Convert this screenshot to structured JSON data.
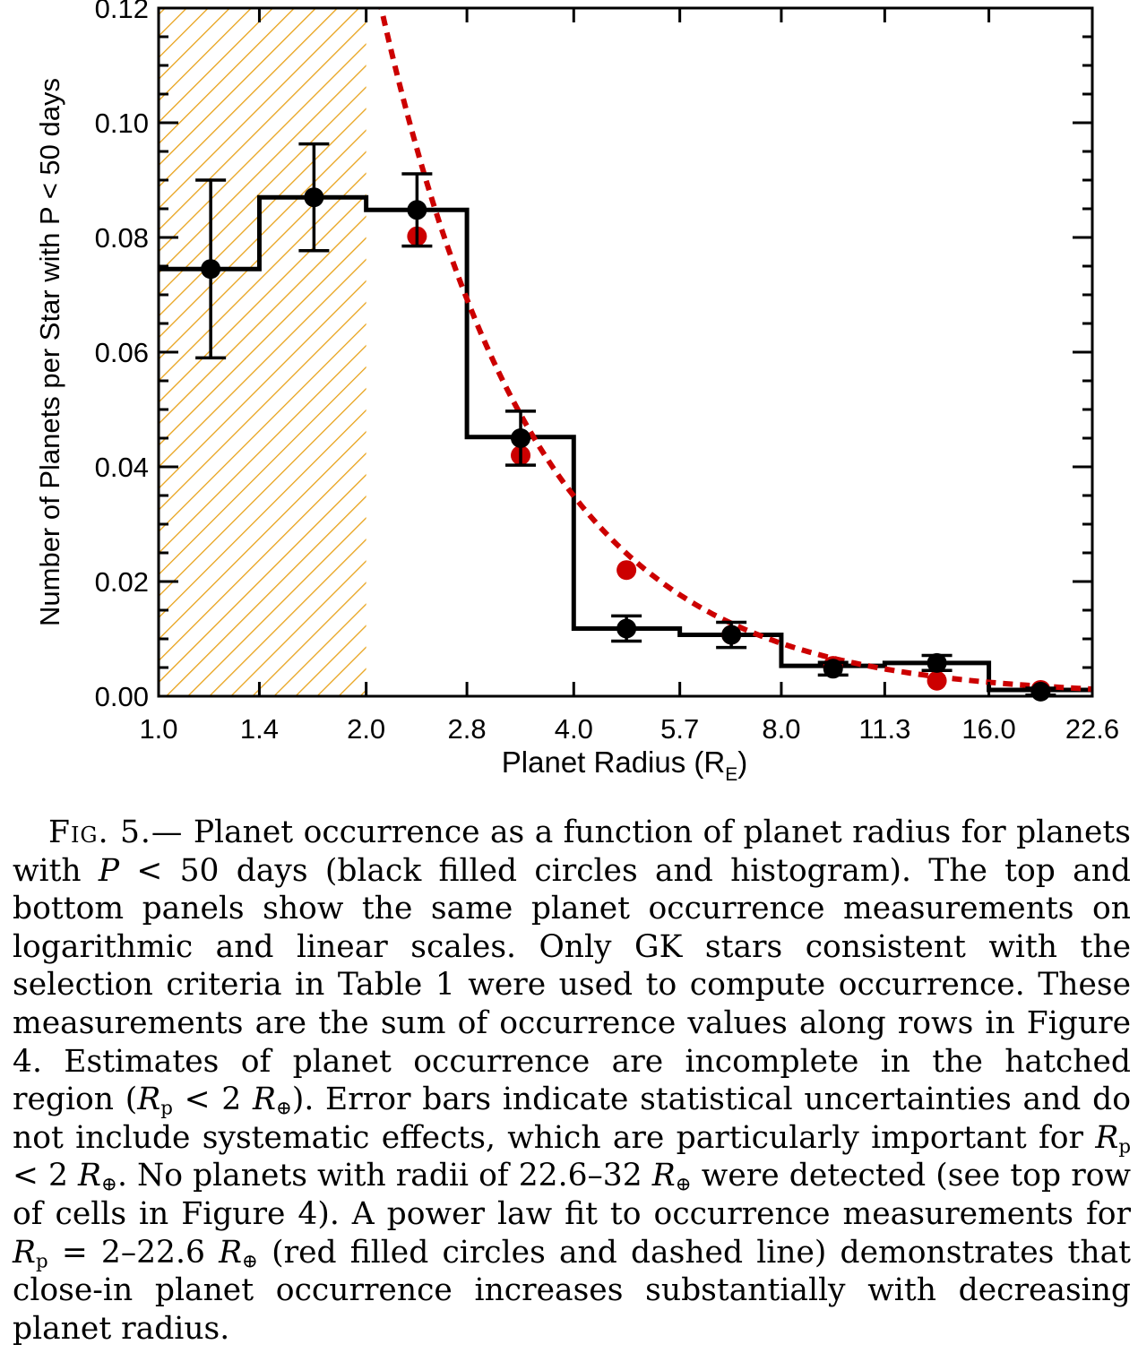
{
  "chart_data": {
    "type": "bar",
    "xlabel": "Planet Radius (R",
    "xlabel_sub": "E",
    "xlabel_close": ")",
    "ylabel": "Number of Planets per Star with P < 50 days",
    "x_scale": "log",
    "xlim": [
      1.0,
      22.6
    ],
    "ylim": [
      0.0,
      0.12
    ],
    "x_ticks": [
      "1.0",
      "1.4",
      "2.0",
      "2.8",
      "4.0",
      "5.7",
      "8.0",
      "11.3",
      "16.0",
      "22.6"
    ],
    "y_ticks": [
      "0.00",
      "0.02",
      "0.04",
      "0.06",
      "0.08",
      "0.10",
      "0.12"
    ],
    "bin_edges": [
      1.0,
      1.4,
      2.0,
      2.8,
      4.0,
      5.7,
      8.0,
      11.3,
      16.0,
      22.6
    ],
    "histogram": {
      "color": "#000000",
      "values": [
        0.0745,
        0.087,
        0.0848,
        0.0452,
        0.0118,
        0.0107,
        0.0053,
        0.0058,
        0.0011
      ]
    },
    "points": {
      "color": "#000000",
      "x": [
        1.19,
        1.68,
        2.37,
        3.35,
        4.77,
        6.77,
        9.51,
        13.45,
        19.02
      ],
      "y": [
        0.0745,
        0.087,
        0.0848,
        0.045,
        0.0118,
        0.0107,
        0.0048,
        0.0058,
        0.0008
      ],
      "err": [
        0.0155,
        0.0093,
        0.0063,
        0.0047,
        0.0022,
        0.0022,
        0.0011,
        0.0013,
        0.0006
      ]
    },
    "fit_points": {
      "color": "#cc0000",
      "x": [
        2.37,
        3.35,
        4.77,
        6.77,
        9.51,
        13.45,
        19.02
      ],
      "y": [
        0.0802,
        0.042,
        0.022,
        0.0107,
        0.0053,
        0.0027,
        0.0011
      ]
    },
    "fit_curve": {
      "color": "#cc0000",
      "style": "dashed",
      "x_range": [
        1.97,
        22.6
      ],
      "model": "power law",
      "k": 0.5,
      "alpha": -1.92
    },
    "hatched_region": {
      "x_range": [
        1.0,
        2.0
      ],
      "color": "#e8a21a"
    },
    "grid": false
  },
  "caption": {
    "label": "Fig. 5.—",
    "t1": " Planet occurrence as a function of planet radius for planets with ",
    "m1": "P",
    "t2": " < 50 days (black filled circles and histogram). The top and bottom panels show the same planet occurrence measure­ments on logarithmic and linear scales. Only GK stars consistent with the selection criteria in Table 1 were used to compute occur­rence. These measurements are the sum of occurrence values along rows in Figure 4. Estimates of planet occurrence are incomplete in the hatched region (",
    "m2": "R",
    "s2": "p",
    "t3": " < 2 ",
    "m3": "R",
    "s3": "⊕",
    "t4": "). Error bars indicate statistical uncertainties and do not include systematic effects, which are par­ticularly important for ",
    "m4": "R",
    "s4": "p",
    "t5": " < 2 ",
    "m5": "R",
    "s5": "⊕",
    "t6": ". No planets with radii of 22.6–32 ",
    "m6": "R",
    "s6": "⊕",
    "t7": " were detected (see top row of cells in Figure 4). A power law fit to occurrence measurements for ",
    "m7": "R",
    "s7": "p",
    "t8": " = 2–22.6 ",
    "m8": "R",
    "s8": "⊕",
    "t9": " (red filled cir­cles and dashed line) demonstrates that close-in planet occurrence increases substantially with decreasing planet radius."
  }
}
